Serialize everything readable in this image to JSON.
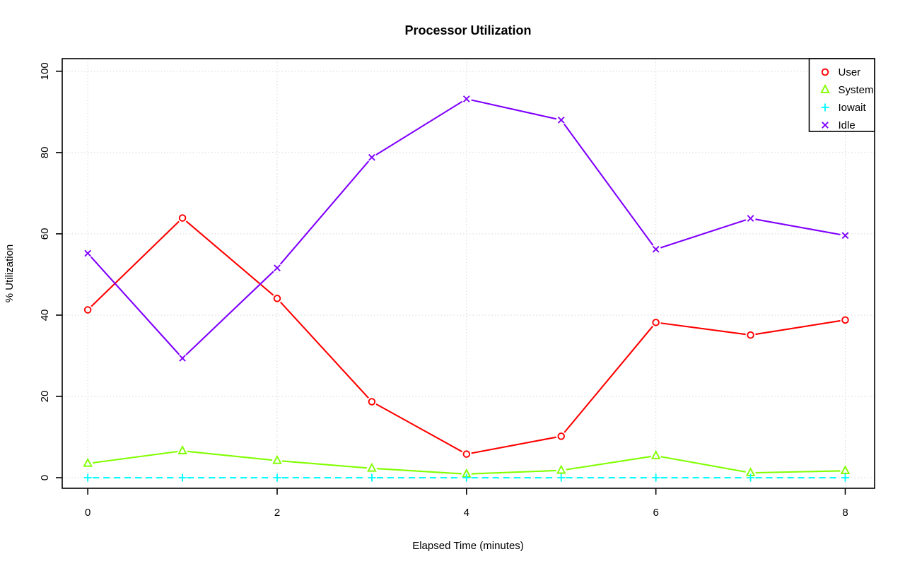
{
  "chart_data": {
    "type": "line",
    "title": "Processor Utilization",
    "xlabel": "Elapsed Time (minutes)",
    "ylabel": "% Utilization",
    "x": [
      0,
      1,
      2,
      3,
      4,
      5,
      6,
      7,
      8
    ],
    "xticks": [
      0,
      2,
      4,
      6,
      8
    ],
    "yticks": [
      0,
      20,
      40,
      60,
      80,
      100
    ],
    "xtick_labels": [
      "0",
      "2",
      "4",
      "6",
      "8"
    ],
    "ytick_labels": [
      "0",
      "20",
      "40",
      "60",
      "80",
      "100"
    ],
    "xlim": [
      -0.27,
      8.31
    ],
    "ylim": [
      -2.6,
      103.1
    ],
    "grid": true,
    "grid_color": "#d6d6d6",
    "axis_color": "#000000",
    "background_color": "#ffffff",
    "legend_position": "top-right",
    "series": [
      {
        "name": "User",
        "color": "#ff0000",
        "marker": "circle",
        "linestyle": "solid",
        "values": [
          41.3,
          63.9,
          44.1,
          18.7,
          5.8,
          10.2,
          38.2,
          35.1,
          38.8
        ]
      },
      {
        "name": "System",
        "color": "#80ff00",
        "marker": "triangle",
        "linestyle": "solid",
        "values": [
          3.5,
          6.6,
          4.2,
          2.3,
          0.9,
          1.8,
          5.4,
          1.2,
          1.7
        ]
      },
      {
        "name": "Iowait",
        "color": "#00ffff",
        "marker": "plus",
        "linestyle": "dashed",
        "values": [
          0,
          0,
          0,
          0,
          0,
          0,
          0,
          0,
          0
        ]
      },
      {
        "name": "Idle",
        "color": "#8000ff",
        "marker": "x",
        "linestyle": "solid",
        "values": [
          55.2,
          29.4,
          51.6,
          78.8,
          93.2,
          88.0,
          56.2,
          63.8,
          59.6
        ]
      }
    ]
  }
}
